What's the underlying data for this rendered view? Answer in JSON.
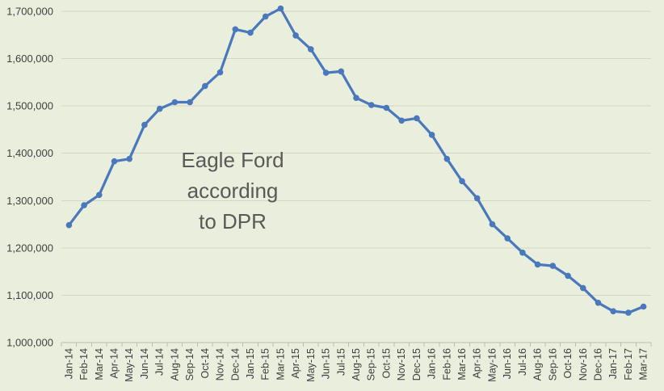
{
  "chart_data": {
    "type": "line",
    "title": "Eagle Ford according to DPR",
    "title_lines": [
      "Eagle Ford",
      "according",
      "to DPR"
    ],
    "series_name": "Eagle Ford according to DPR",
    "legend": "none",
    "grid": true,
    "xlabel": "",
    "ylabel": "",
    "ylim": [
      1000000,
      1700000
    ],
    "ytick_step": 100000,
    "ytick_labels": [
      "1,000,000",
      "1,100,000",
      "1,200,000",
      "1,300,000",
      "1,400,000",
      "1,500,000",
      "1,600,000",
      "1,700,000"
    ],
    "categories": [
      "Jan-14",
      "Feb-14",
      "Mar-14",
      "Apr-14",
      "May-14",
      "Jun-14",
      "Jul-14",
      "Aug-14",
      "Sep-14",
      "Oct-14",
      "Nov-14",
      "Dec-14",
      "Jan-15",
      "Feb-15",
      "Mar-15",
      "Apr-15",
      "May-15",
      "Jun-15",
      "Jul-15",
      "Aug-15",
      "Sep-15",
      "Oct-15",
      "Nov-15",
      "Dec-15",
      "Jan-16",
      "Feb-16",
      "Mar-16",
      "Apr-16",
      "May-16",
      "Jun-16",
      "Jul-16",
      "Aug-16",
      "Sep-16",
      "Oct-16",
      "Nov-16",
      "Dec-16",
      "Jan-17",
      "Feb-17",
      "Mar-17"
    ],
    "values": [
      1248000,
      1290000,
      1312000,
      1383000,
      1388000,
      1460000,
      1494000,
      1508000,
      1508000,
      1542000,
      1571000,
      1662000,
      1655000,
      1689000,
      1706000,
      1649000,
      1620000,
      1570000,
      1573000,
      1517000,
      1502000,
      1496000,
      1469000,
      1474000,
      1439000,
      1388000,
      1341000,
      1305000,
      1250000,
      1220000,
      1190000,
      1165000,
      1162000,
      1141000,
      1115000,
      1084000,
      1066000,
      1063000,
      1076000
    ],
    "colors": {
      "background": "#EAEEDC",
      "line": "#4A78BC",
      "marker": "#4A78BC",
      "gridline": "#D2D6C4",
      "axis": "#B9BDAD",
      "tick_label": "#3F3F3F",
      "title": "#595959"
    }
  }
}
